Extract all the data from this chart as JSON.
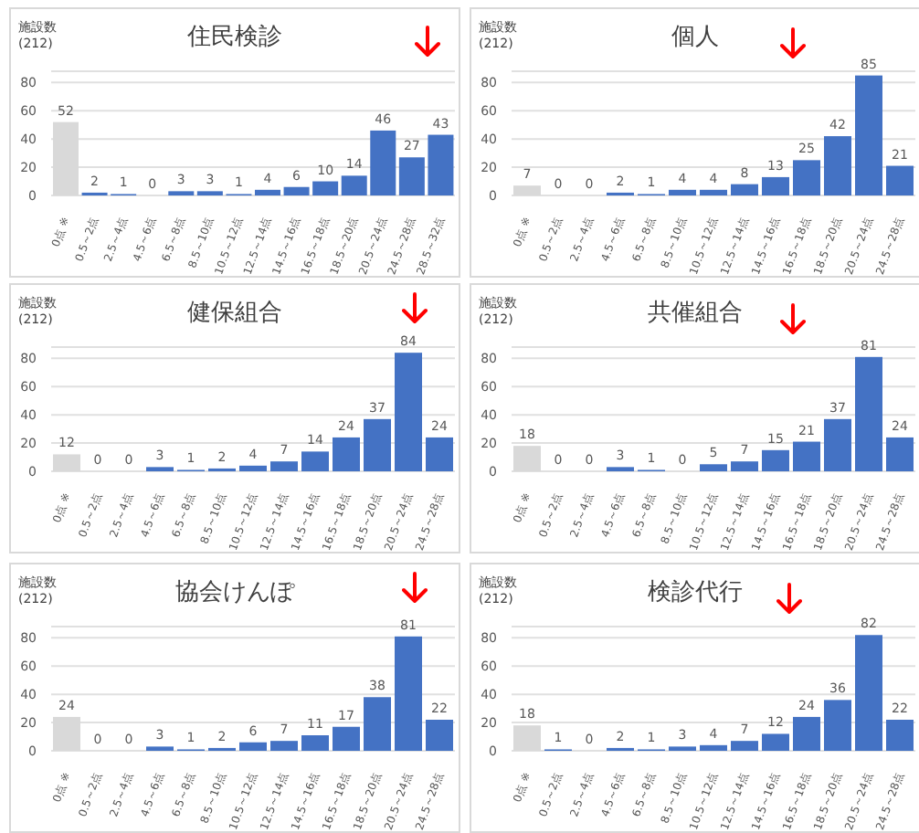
{
  "chart_data": [
    {
      "type": "bar",
      "title": "住民検診",
      "ylabel": "施設数 (212)",
      "categories": [
        "0点 ※",
        "0.5～2点",
        "2.5～4点",
        "4.5～6点",
        "6.5～8点",
        "8.5～10点",
        "10.5～12点",
        "12.5～14点",
        "14.5～16点",
        "16.5～18点",
        "18.5～20点",
        "20.5～24点",
        "24.5～28点",
        "28.5～32点"
      ],
      "values": [
        52,
        2,
        1,
        0,
        3,
        3,
        1,
        4,
        6,
        10,
        14,
        46,
        27,
        43
      ],
      "colors": [
        "#d9d9d9",
        "#4472c4",
        "#4472c4",
        "#4472c4",
        "#4472c4",
        "#4472c4",
        "#4472c4",
        "#4472c4",
        "#4472c4",
        "#4472c4",
        "#4472c4",
        "#4472c4",
        "#4472c4",
        "#4472c4"
      ],
      "ylim": [
        0,
        88
      ],
      "yticks": [
        0,
        20,
        40,
        60,
        80
      ],
      "grid": "y",
      "data_labels": true
    },
    {
      "type": "bar",
      "title": "個人",
      "ylabel": "施設数 (212)",
      "categories": [
        "0点 ※",
        "0.5～2点",
        "2.5～4点",
        "4.5～6点",
        "6.5～8点",
        "8.5～10点",
        "10.5～12点",
        "12.5～14点",
        "14.5～16点",
        "16.5～18点",
        "18.5～20点",
        "20.5～24点",
        "24.5～28点"
      ],
      "values": [
        7,
        0,
        0,
        2,
        1,
        4,
        4,
        8,
        13,
        25,
        42,
        85,
        21
      ],
      "colors": [
        "#d9d9d9",
        "#4472c4",
        "#4472c4",
        "#4472c4",
        "#4472c4",
        "#4472c4",
        "#4472c4",
        "#4472c4",
        "#4472c4",
        "#4472c4",
        "#4472c4",
        "#4472c4",
        "#4472c4"
      ],
      "ylim": [
        0,
        88
      ],
      "yticks": [
        0,
        20,
        40,
        60,
        80
      ],
      "grid": "y",
      "data_labels": true
    },
    {
      "type": "bar",
      "title": "健保組合",
      "ylabel": "施設数 (212)",
      "categories": [
        "0点 ※",
        "0.5～2点",
        "2.5～4点",
        "4.5～6点",
        "6.5～8点",
        "8.5～10点",
        "10.5～12点",
        "12.5～14点",
        "14.5～16点",
        "16.5～18点",
        "18.5～20点",
        "20.5～24点",
        "24.5～28点"
      ],
      "values": [
        12,
        0,
        0,
        3,
        1,
        2,
        4,
        7,
        14,
        24,
        37,
        84,
        24
      ],
      "colors": [
        "#d9d9d9",
        "#4472c4",
        "#4472c4",
        "#4472c4",
        "#4472c4",
        "#4472c4",
        "#4472c4",
        "#4472c4",
        "#4472c4",
        "#4472c4",
        "#4472c4",
        "#4472c4",
        "#4472c4"
      ],
      "ylim": [
        0,
        88
      ],
      "yticks": [
        0,
        20,
        40,
        60,
        80
      ],
      "grid": "y",
      "data_labels": true
    },
    {
      "type": "bar",
      "title": "共催組合",
      "ylabel": "施設数 (212)",
      "categories": [
        "0点 ※",
        "0.5～2点",
        "2.5～4点",
        "4.5～6点",
        "6.5～8点",
        "8.5～10点",
        "10.5～12点",
        "12.5～14点",
        "14.5～16点",
        "16.5～18点",
        "18.5～20点",
        "20.5～24点",
        "24.5～28点"
      ],
      "values": [
        18,
        0,
        0,
        3,
        1,
        0,
        5,
        7,
        15,
        21,
        37,
        81,
        24
      ],
      "colors": [
        "#d9d9d9",
        "#4472c4",
        "#4472c4",
        "#4472c4",
        "#4472c4",
        "#4472c4",
        "#4472c4",
        "#4472c4",
        "#4472c4",
        "#4472c4",
        "#4472c4",
        "#4472c4",
        "#4472c4"
      ],
      "ylim": [
        0,
        88
      ],
      "yticks": [
        0,
        20,
        40,
        60,
        80
      ],
      "grid": "y",
      "data_labels": true
    },
    {
      "type": "bar",
      "title": "協会けんぽ",
      "ylabel": "施設数 (212)",
      "categories": [
        "0点 ※",
        "0.5～2点",
        "2.5～4点",
        "4.5～6点",
        "6.5～8点",
        "8.5～10点",
        "10.5～12点",
        "12.5～14点",
        "14.5～16点",
        "16.5～18点",
        "18.5～20点",
        "20.5～24点",
        "24.5～28点"
      ],
      "values": [
        24,
        0,
        0,
        3,
        1,
        2,
        6,
        7,
        11,
        17,
        38,
        81,
        22
      ],
      "colors": [
        "#d9d9d9",
        "#4472c4",
        "#4472c4",
        "#4472c4",
        "#4472c4",
        "#4472c4",
        "#4472c4",
        "#4472c4",
        "#4472c4",
        "#4472c4",
        "#4472c4",
        "#4472c4",
        "#4472c4"
      ],
      "ylim": [
        0,
        88
      ],
      "yticks": [
        0,
        20,
        40,
        60,
        80
      ],
      "grid": "y",
      "data_labels": true
    },
    {
      "type": "bar",
      "title": "検診代行",
      "ylabel": "施設数 (212)",
      "categories": [
        "0点 ※",
        "0.5～2点",
        "2.5～4点",
        "4.5～6点",
        "6.5～8点",
        "8.5～10点",
        "10.5～12点",
        "12.5～14点",
        "14.5～16点",
        "16.5～18点",
        "18.5～20点",
        "20.5～24点",
        "24.5～28点"
      ],
      "values": [
        18,
        1,
        0,
        2,
        1,
        3,
        4,
        7,
        12,
        24,
        36,
        82,
        22
      ],
      "colors": [
        "#d9d9d9",
        "#4472c4",
        "#4472c4",
        "#4472c4",
        "#4472c4",
        "#4472c4",
        "#4472c4",
        "#4472c4",
        "#4472c4",
        "#4472c4",
        "#4472c4",
        "#4472c4",
        "#4472c4"
      ],
      "ylim": [
        0,
        88
      ],
      "yticks": [
        0,
        20,
        40,
        60,
        80
      ],
      "grid": "y",
      "data_labels": true
    }
  ]
}
